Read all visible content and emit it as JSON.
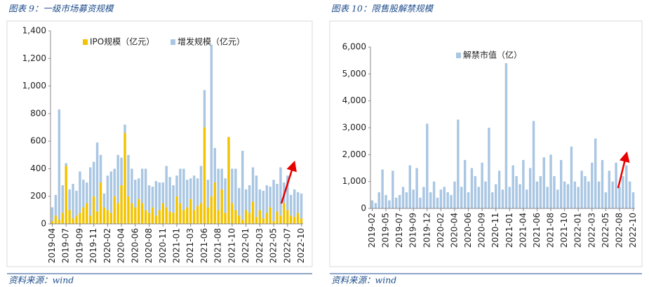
{
  "chart_data": [
    {
      "type": "bar",
      "stacked": true,
      "title": "图表 9：一级市场募资规模",
      "source": "资料来源：wind",
      "categories": [
        "2019-04",
        null,
        null,
        null,
        "2019-07",
        null,
        null,
        null,
        "2019-09",
        null,
        null,
        null,
        "2019-11",
        null,
        null,
        null,
        "2020-02",
        null,
        null,
        null,
        "2020-04",
        null,
        null,
        null,
        "2020-06",
        null,
        null,
        null,
        "2020-08",
        null,
        null,
        null,
        "2020-11",
        null,
        null,
        null,
        "2021-01",
        null,
        null,
        null,
        "2021-03",
        null,
        null,
        null,
        "2021-06",
        null,
        null,
        null,
        "2021-08",
        null,
        null,
        null,
        "2021-10",
        null,
        null,
        null,
        "2022-01",
        null,
        null,
        null,
        "2022-03",
        null,
        null,
        null,
        "2022-05",
        null,
        null,
        null,
        "2022-07",
        null,
        null,
        null,
        "2022-10"
      ],
      "series": [
        {
          "name": "IPO规模（亿元）",
          "color": "#f2c300",
          "values": [
            20,
            60,
            30,
            80,
            420,
            100,
            40,
            60,
            80,
            120,
            150,
            60,
            200,
            90,
            300,
            120,
            100,
            80,
            200,
            150,
            280,
            660,
            200,
            150,
            120,
            180,
            150,
            100,
            80,
            120,
            60,
            100,
            150,
            120,
            90,
            80,
            200,
            150,
            100,
            120,
            180,
            100,
            130,
            150,
            700,
            120,
            200,
            300,
            100,
            250,
            80,
            630,
            150,
            100,
            60,
            30,
            100,
            80,
            160,
            50,
            100,
            40,
            80,
            120,
            20,
            90,
            60,
            150,
            100,
            60,
            50,
            80,
            40
          ]
        },
        {
          "name": "增发规模（亿元）",
          "color": "#a9c6e3",
          "values": [
            100,
            150,
            800,
            200,
            20,
            150,
            250,
            180,
            300,
            200,
            150,
            350,
            250,
            500,
            200,
            100,
            250,
            300,
            200,
            350,
            200,
            60,
            300,
            250,
            200,
            150,
            250,
            300,
            200,
            150,
            250,
            200,
            150,
            300,
            250,
            200,
            150,
            250,
            300,
            200,
            150,
            250,
            200,
            270,
            270,
            200,
            1100,
            250,
            300,
            150,
            250,
            0,
            250,
            300,
            200,
            500,
            150,
            200,
            250,
            300,
            150,
            200,
            200,
            150,
            300,
            200,
            350,
            150,
            250,
            150,
            200,
            150,
            180
          ]
        }
      ],
      "ylim": [
        0,
        1400
      ],
      "yticks": [
        0,
        200,
        400,
        600,
        800,
        {
          "value": 1000,
          "label": "1,000"
        },
        {
          "value": 1200,
          "label": "1,200"
        },
        {
          "value": 1400,
          "label": "1,400"
        }
      ]
    },
    {
      "type": "bar",
      "stacked": false,
      "title": "图表 10：限售股解禁规模",
      "source": "资料来源：wind",
      "categories": [
        "2019-02",
        null,
        null,
        null,
        "2019-05",
        null,
        null,
        null,
        "2019-07",
        null,
        null,
        null,
        "2019-09",
        null,
        null,
        null,
        "2019-12",
        null,
        null,
        null,
        "2020-02",
        null,
        null,
        null,
        "2020-04",
        null,
        null,
        null,
        "2020-06",
        null,
        null,
        null,
        "2020-09",
        null,
        null,
        null,
        "2020-11",
        null,
        null,
        null,
        "2021-01",
        null,
        null,
        null,
        "2021-04",
        null,
        null,
        null,
        "2021-06",
        null,
        null,
        null,
        "2021-08",
        null,
        null,
        null,
        "2021-10",
        null,
        null,
        null,
        "2022-01",
        null,
        null,
        null,
        "2022-03",
        null,
        null,
        null,
        "2022-05",
        null,
        null,
        null,
        "2022-08",
        null,
        null,
        null,
        "2022-10"
      ],
      "series": [
        {
          "name": "解禁市值（亿）",
          "color": "#a9c6e3",
          "values": [
            300,
            200,
            600,
            1450,
            500,
            300,
            1400,
            400,
            500,
            800,
            600,
            1600,
            700,
            1500,
            400,
            800,
            3150,
            600,
            1000,
            400,
            700,
            800,
            600,
            500,
            1000,
            3300,
            800,
            1800,
            600,
            1500,
            1200,
            800,
            1700,
            1000,
            3000,
            600,
            900,
            1400,
            700,
            5400,
            800,
            1600,
            1200,
            900,
            1800,
            700,
            1500,
            3250,
            1000,
            1200,
            1900,
            800,
            2000,
            1200,
            700,
            1800,
            1000,
            900,
            2300,
            1000,
            800,
            1400,
            1200,
            1000,
            1700,
            2600,
            1000,
            1800,
            600,
            1400,
            1000,
            1700,
            800,
            1200,
            1600,
            1000,
            600
          ]
        }
      ],
      "ylim": [
        0,
        6000
      ],
      "yticks": [
        0,
        {
          "value": 1000,
          "label": "1,000"
        },
        {
          "value": 2000,
          "label": "2,000"
        },
        {
          "value": 3000,
          "label": "3,000"
        },
        {
          "value": 4000,
          "label": "4,000"
        },
        {
          "value": 5000,
          "label": "5,000"
        },
        {
          "value": 6000,
          "label": "6,000"
        }
      ]
    }
  ]
}
